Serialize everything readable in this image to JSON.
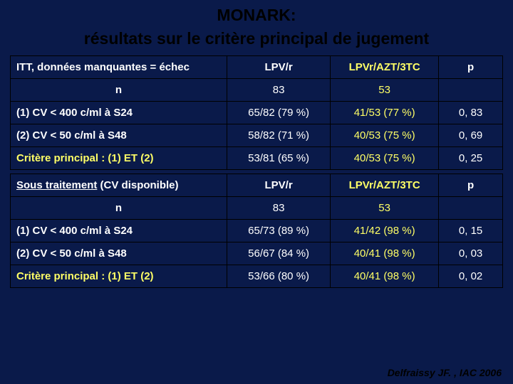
{
  "title": {
    "line1": "MONARK:",
    "line2": "résultats sur le critère principal de jugement"
  },
  "columns": {
    "a": "LPV/r",
    "b": "LPVr/AZT/3TC",
    "p": "p"
  },
  "table1": {
    "header_label": "ITT, données manquantes = échec",
    "n_label": "n",
    "n_a": "83",
    "n_b": "53",
    "rows": [
      {
        "label": "(1) CV < 400 c/ml à S24",
        "a": "65/82 (79 %)",
        "b": "41/53 (77 %)",
        "p": "0, 83"
      },
      {
        "label": "(2) CV < 50 c/ml à S48",
        "a": "58/82 (71 %)",
        "b": "40/53 (75 %)",
        "p": "0, 69"
      }
    ],
    "critere": {
      "label": "Critère principal : (1) ET (2)",
      "a": "53/81 (65 %)",
      "b": "40/53 (75 %)",
      "p": "0, 25"
    }
  },
  "table2": {
    "header_label_pre": "Sous traitement",
    "header_label_post": " (CV disponible)",
    "n_label": "n",
    "n_a": "83",
    "n_b": "53",
    "rows": [
      {
        "label": "(1) CV < 400 c/ml à S24",
        "a": "65/73 (89 %)",
        "b": "41/42 (98 %)",
        "p": "0, 15"
      },
      {
        "label": "(2) CV < 50 c/ml à S48",
        "a": "56/67 (84 %)",
        "b": "40/41 (98 %)",
        "p": "0, 03"
      }
    ],
    "critere": {
      "label": "Critère principal : (1) ET (2)",
      "a": "53/66 (80 %)",
      "b": "40/41 (98 %)",
      "p": "0, 02"
    }
  },
  "citation": "Delfraissy JF. , IAC 2006",
  "colors": {
    "background": "#0a1a4a",
    "text_white": "#ffffff",
    "text_yellow": "#ffff66",
    "text_black": "#000000",
    "border": "#000000"
  }
}
